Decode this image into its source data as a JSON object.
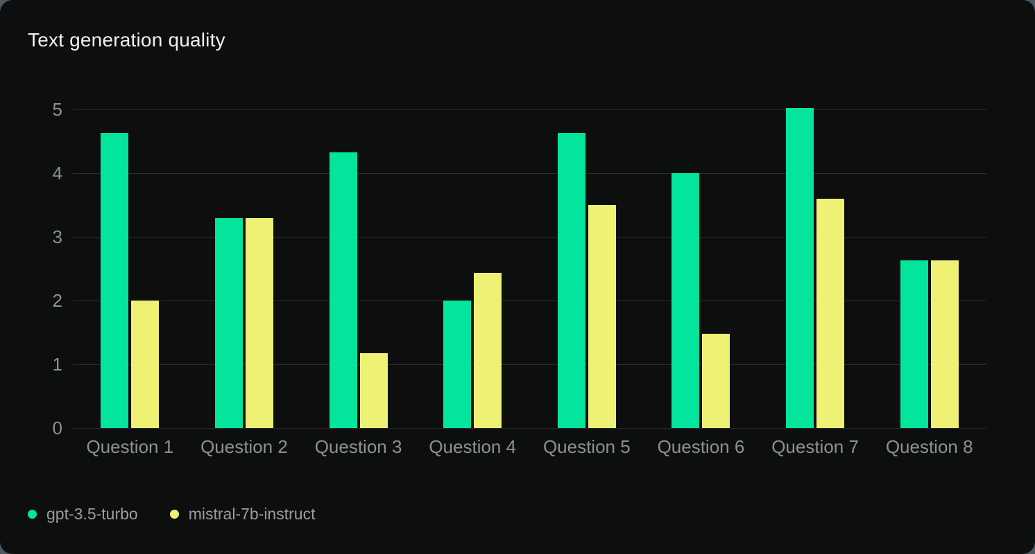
{
  "page": {
    "outer_background": "#4c5960",
    "card_background": "#0d0f0f"
  },
  "chart": {
    "title": "Text generation quality"
  },
  "chart_data": {
    "type": "bar",
    "title": "Text generation quality",
    "xlabel": "",
    "ylabel": "",
    "categories": [
      "Question 1",
      "Question 2",
      "Question 3",
      "Question 4",
      "Question 5",
      "Question 6",
      "Question 7",
      "Question 8"
    ],
    "series": [
      {
        "name": "gpt-3.5-turbo",
        "color": "#03e59c",
        "values": [
          4.63,
          3.29,
          4.33,
          2.0,
          4.63,
          4.0,
          5.02,
          2.63
        ]
      },
      {
        "name": "mistral-7b-instruct",
        "color": "#eef173",
        "values": [
          2.0,
          3.29,
          1.17,
          2.43,
          3.5,
          1.48,
          3.6,
          2.63
        ]
      }
    ],
    "ylim": [
      0,
      5
    ],
    "yticks": [
      0,
      1,
      2,
      3,
      4,
      5
    ],
    "grid": "horizontal",
    "gridline_color": "#2b2e2e",
    "axis_label_color": "#8d9096",
    "legend_text_color": "#9c9ca0",
    "legend_position": "bottom-left"
  }
}
